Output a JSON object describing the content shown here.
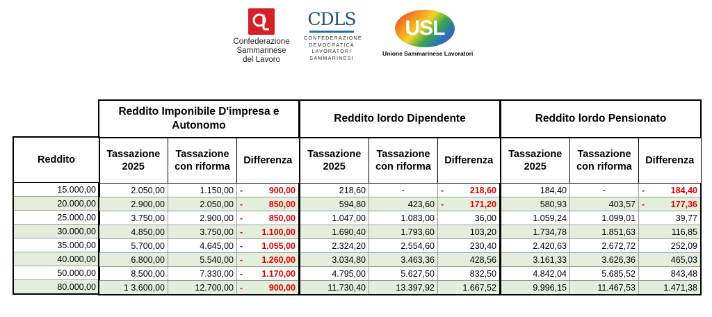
{
  "logos": {
    "csdl": {
      "name_lines": [
        "Confederazione",
        "Sammarinese",
        "del Lavoro"
      ]
    },
    "cdls": {
      "wordmark": "CDLS",
      "sub_lines": [
        "CONFEDERAZIONE",
        "DEMOCRATICA",
        "LAVORATORI",
        "SAMMARINESI"
      ]
    },
    "usl": {
      "wordmark": "USL",
      "sub": "Unione Sammarinese Lavoratori"
    }
  },
  "columns": {
    "reddito": "Reddito",
    "groups": [
      {
        "title": "Reddito Imponibile D'impresa e Autonomo",
        "sub": [
          "Tassazione 2025",
          "Tassazione con riforma",
          "Differenza"
        ]
      },
      {
        "title": "Reddito lordo Dipendente",
        "sub": [
          "Tassazione 2025",
          "Tassazione con riforma",
          "Differenza"
        ]
      },
      {
        "title": "Reddito lordo Pensionato",
        "sub": [
          "Tassazione 2025",
          "Tassazione con riforma",
          "Differenza"
        ]
      }
    ]
  },
  "rows": [
    {
      "reddito": "15.000,00",
      "g": [
        [
          "2.050,00",
          "1.150,00",
          "900,00",
          true
        ],
        [
          "218,60",
          "-",
          "218,60",
          true
        ],
        [
          "184,40",
          "-",
          "184,40",
          true
        ]
      ]
    },
    {
      "reddito": "20.000,00",
      "g": [
        [
          "2.900,00",
          "2.050,00",
          "850,00",
          true
        ],
        [
          "594,80",
          "423,60",
          "171,20",
          true
        ],
        [
          "580,93",
          "403,57",
          "177,36",
          true
        ]
      ]
    },
    {
      "reddito": "25.000,00",
      "g": [
        [
          "3.750,00",
          "2.900,00",
          "850,00",
          true
        ],
        [
          "1.047,00",
          "1.083,00",
          "36,00",
          false
        ],
        [
          "1.059,24",
          "1.099,01",
          "39,77",
          false
        ]
      ]
    },
    {
      "reddito": "30.000,00",
      "g": [
        [
          "4.850,00",
          "3.750,00",
          "1.100,00",
          true
        ],
        [
          "1.690,40",
          "1.793,60",
          "103,20",
          false
        ],
        [
          "1.734,78",
          "1.851,63",
          "116,85",
          false
        ]
      ]
    },
    {
      "reddito": "35.000,00",
      "g": [
        [
          "5.700,00",
          "4.645,00",
          "1.055,00",
          true
        ],
        [
          "2.324,20",
          "2.554,60",
          "230,40",
          false
        ],
        [
          "2.420,63",
          "2.672,72",
          "252,09",
          false
        ]
      ]
    },
    {
      "reddito": "40.000,00",
      "g": [
        [
          "6.800,00",
          "5.540,00",
          "1.260,00",
          true
        ],
        [
          "3.034,80",
          "3.463,36",
          "428,56",
          false
        ],
        [
          "3.161,33",
          "3.626,36",
          "465,03",
          false
        ]
      ]
    },
    {
      "reddito": "50.000,00",
      "g": [
        [
          "8.500,00",
          "7.330,00",
          "1.170,00",
          true
        ],
        [
          "4.795,00",
          "5.627,50",
          "832,50",
          false
        ],
        [
          "4.842,04",
          "5.685,52",
          "843,48",
          false
        ]
      ]
    },
    {
      "reddito": "80.000,00",
      "g": [
        [
          "1 3.600,00",
          "12.700,00",
          "900,00",
          true
        ],
        [
          "11.730,40",
          "13.397,92",
          "1.667,52",
          false
        ],
        [
          "9.996,15",
          "11.467,53",
          "1.471,38",
          false
        ]
      ]
    }
  ],
  "colors": {
    "negative": "#e00000",
    "row_alt": "#e3eedb"
  }
}
